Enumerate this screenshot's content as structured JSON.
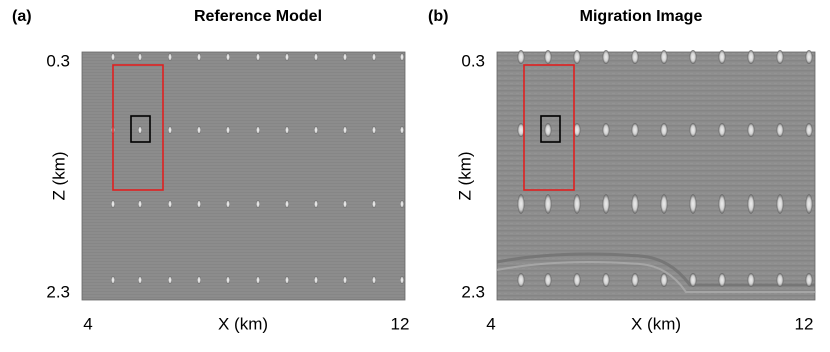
{
  "chart_data": [
    {
      "type": "image",
      "panel_label": "(a)",
      "title": "Reference Model",
      "x_label": "X (km)",
      "y_label": "Z (km)",
      "xlim": [
        4,
        12
      ],
      "ylim": [
        0.3,
        2.3
      ],
      "xticks": [
        4,
        12
      ],
      "yticks": [
        0.3,
        2.3
      ]
    },
    {
      "type": "image",
      "panel_label": "(b)",
      "title": "Migration Image",
      "x_label": "X (km)",
      "y_label": "Z (km)",
      "xlim": [
        4,
        12
      ],
      "ylim": [
        0.3,
        2.3
      ],
      "xticks": [
        4,
        12
      ],
      "yticks": [
        0.3,
        2.3
      ]
    }
  ]
}
